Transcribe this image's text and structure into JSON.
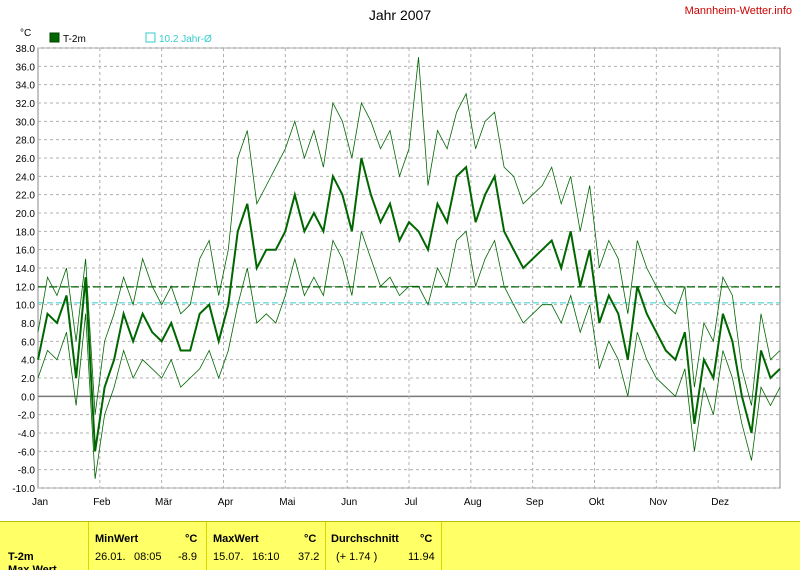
{
  "chart_data": {
    "type": "line",
    "title": "Jahr 2007",
    "brand": "Mannheim-Wetter.info",
    "yunit": "°C",
    "ylim": [
      -10,
      38
    ],
    "yticks": [
      "-10.0",
      "-8.0",
      "-6.0",
      "-4.0",
      "-2.0",
      "0.0",
      "2.0",
      "4.0",
      "6.0",
      "8.0",
      "10.0",
      "12.0",
      "14.0",
      "16.0",
      "18.0",
      "20.0",
      "22.0",
      "24.0",
      "26.0",
      "28.0",
      "30.0",
      "32.0",
      "34.0",
      "36.0",
      "38.0"
    ],
    "months": [
      "Jan",
      "Feb",
      "Mär",
      "Apr",
      "Mai",
      "Jun",
      "Jul",
      "Aug",
      "Sep",
      "Okt",
      "Nov",
      "Dez"
    ],
    "legend": [
      {
        "label": "T-2m",
        "color": "#006600"
      },
      {
        "label": "10.2 Jahr-Ø",
        "color": "#33cccc"
      }
    ],
    "average_line": 11.94,
    "longterm_average": 10.2,
    "series": [
      {
        "name": "T-2m",
        "color": "#006600",
        "values": [
          4,
          9,
          8,
          11,
          2,
          13,
          -6,
          1,
          4,
          9,
          6,
          9,
          7,
          6,
          8,
          5,
          5,
          9,
          10,
          6,
          10,
          18,
          21,
          14,
          16,
          16,
          18,
          22,
          18,
          20,
          18,
          24,
          22,
          18,
          26,
          22,
          19,
          21,
          17,
          19,
          18,
          16,
          21,
          19,
          24,
          25,
          19,
          22,
          24,
          18,
          16,
          14,
          15,
          16,
          17,
          14,
          18,
          12,
          16,
          8,
          11,
          9,
          4,
          12,
          9,
          7,
          5,
          4,
          7,
          -3,
          4,
          2,
          9,
          6,
          0,
          -4,
          5,
          2,
          3
        ]
      },
      {
        "name": "T-2m max",
        "color": "#006600",
        "values": [
          7,
          13,
          11,
          14,
          6,
          15,
          -2,
          6,
          9,
          13,
          10,
          15,
          12,
          10,
          12,
          9,
          10,
          15,
          17,
          11,
          16,
          26,
          29,
          21,
          23,
          25,
          27,
          30,
          26,
          29,
          25,
          32,
          30,
          26,
          32,
          30,
          27,
          29,
          24,
          27,
          37,
          23,
          29,
          27,
          31,
          33,
          27,
          30,
          31,
          25,
          24,
          21,
          22,
          23,
          25,
          21,
          24,
          18,
          23,
          14,
          17,
          15,
          9,
          17,
          14,
          12,
          10,
          9,
          12,
          1,
          8,
          6,
          13,
          11,
          3,
          -1,
          9,
          4,
          5
        ]
      },
      {
        "name": "T-2m min",
        "color": "#006600",
        "values": [
          2,
          5,
          4,
          7,
          -1,
          9,
          -9,
          -2,
          1,
          5,
          2,
          4,
          3,
          2,
          4,
          1,
          2,
          3,
          5,
          2,
          5,
          10,
          14,
          8,
          9,
          8,
          11,
          15,
          11,
          13,
          11,
          17,
          15,
          11,
          18,
          15,
          12,
          13,
          11,
          12,
          12,
          10,
          14,
          12,
          17,
          18,
          12,
          15,
          17,
          12,
          10,
          8,
          9,
          10,
          10,
          8,
          11,
          7,
          10,
          3,
          6,
          4,
          0,
          7,
          4,
          2,
          1,
          0,
          3,
          -6,
          1,
          -2,
          5,
          2,
          -3,
          -7,
          1,
          -1,
          1
        ]
      }
    ]
  },
  "stats": {
    "row_label": "T-2m",
    "row_label2": "Max Wert",
    "min_header": "MinWert",
    "min_unit": "°C",
    "min_date": "26.01.",
    "min_time": "08:05",
    "min_value": "-8.9",
    "max_header": "MaxWert",
    "max_unit": "°C",
    "max_date": "15.07.",
    "max_time": "16:10",
    "max_value": "37.2",
    "avg_header": "Durchschnitt",
    "avg_unit": "°C",
    "avg_delta": "(+ 1.74 )",
    "avg_value": "11.94"
  }
}
